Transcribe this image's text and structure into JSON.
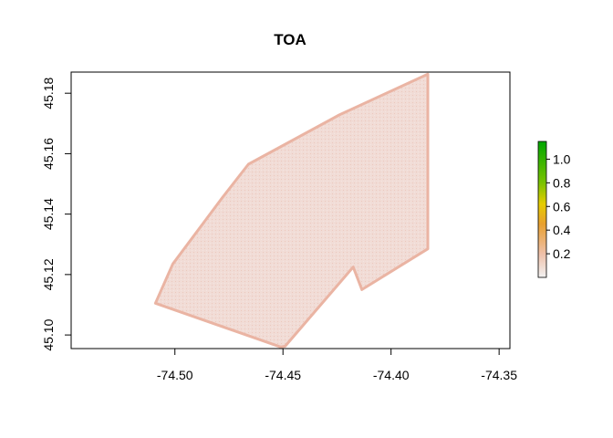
{
  "chart_data": {
    "type": "raster-map",
    "title": "TOA",
    "xlabel": "",
    "ylabel": "",
    "xlim": [
      -74.548,
      -74.345
    ],
    "ylim": [
      45.0955,
      45.187
    ],
    "x_ticks": [
      -74.5,
      -74.45,
      -74.4,
      -74.35
    ],
    "x_tick_labels": [
      "-74.50",
      "-74.45",
      "-74.40",
      "-74.35"
    ],
    "y_ticks": [
      45.1,
      45.12,
      45.14,
      45.16,
      45.18
    ],
    "y_tick_labels": [
      "45.10",
      "45.12",
      "45.14",
      "45.16",
      "45.18"
    ],
    "grid": false,
    "raster_extent_polygon": [
      [
        -74.509,
        45.1105
      ],
      [
        -74.501,
        45.1235
      ],
      [
        -74.478,
        45.1455
      ],
      [
        -74.466,
        45.1565
      ],
      [
        -74.424,
        45.1728
      ],
      [
        -74.383,
        45.1863
      ],
      [
        -74.383,
        45.1285
      ],
      [
        -74.4135,
        45.115
      ],
      [
        -74.4175,
        45.1225
      ],
      [
        -74.449,
        45.0963
      ],
      [
        -74.451,
        45.096
      ]
    ],
    "fill_colors": {
      "interior": "#f1dcd6",
      "edge": "#eab4a3"
    },
    "legend": {
      "type": "colorbar",
      "placement": "right",
      "range": [
        0,
        1.15
      ],
      "ticks": [
        0.2,
        0.4,
        0.6,
        0.8,
        1.0
      ],
      "tick_labels": [
        "0.2",
        "0.4",
        "0.6",
        "0.8",
        "1.0"
      ],
      "color_stops": [
        {
          "value": 0.0,
          "color": "#f2f2f2"
        },
        {
          "value": 0.2,
          "color": "#eebfa8"
        },
        {
          "value": 0.45,
          "color": "#e8a030"
        },
        {
          "value": 0.62,
          "color": "#e6cc00"
        },
        {
          "value": 0.8,
          "color": "#7ac300"
        },
        {
          "value": 1.15,
          "color": "#00a600"
        }
      ]
    }
  }
}
